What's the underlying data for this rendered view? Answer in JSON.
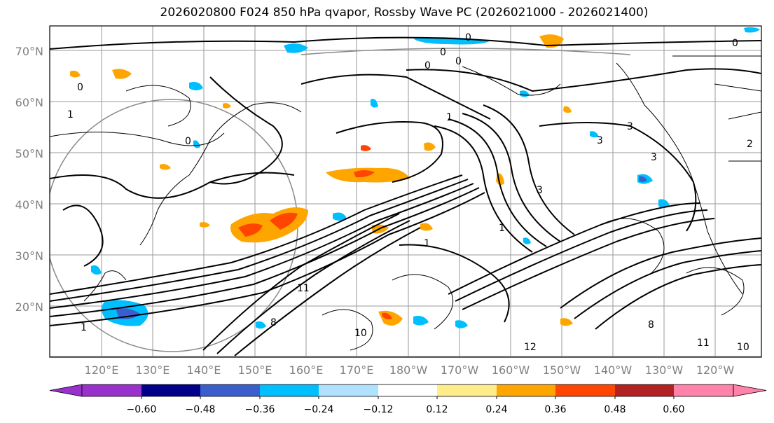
{
  "title": "2026020800 F024 850 hPa qvapor, Rossby Wave PC (2026021000 - 2026021400)",
  "map": {
    "lat_ticks": [
      "70°N",
      "60°N",
      "50°N",
      "40°N",
      "30°N",
      "20°N"
    ],
    "lon_ticks": [
      "120°E",
      "130°E",
      "140°E",
      "150°E",
      "160°E",
      "170°E",
      "180°W",
      "170°W",
      "160°W",
      "150°W",
      "140°W",
      "130°W",
      "120°W"
    ],
    "contour_labels": [
      "0",
      "0",
      "0",
      "0",
      "0",
      "0",
      "0",
      "1",
      "1",
      "1",
      "1",
      "2",
      "3",
      "3",
      "3",
      "3",
      "8",
      "8",
      "10",
      "10",
      "11",
      "12",
      "1",
      "11"
    ]
  },
  "colorbar": {
    "colors": [
      "#9932cc",
      "#00008b",
      "#3a5fcd",
      "#00bfff",
      "#b0e2ff",
      "#ffffff",
      "#ffec8b",
      "#ffa500",
      "#ff4500",
      "#b22222",
      "#ff82ab"
    ],
    "tick_labels": [
      "−0.60",
      "−0.48",
      "−0.36",
      "−0.24",
      "−0.12",
      "0.12",
      "0.24",
      "0.36",
      "0.48",
      "0.60"
    ]
  }
}
